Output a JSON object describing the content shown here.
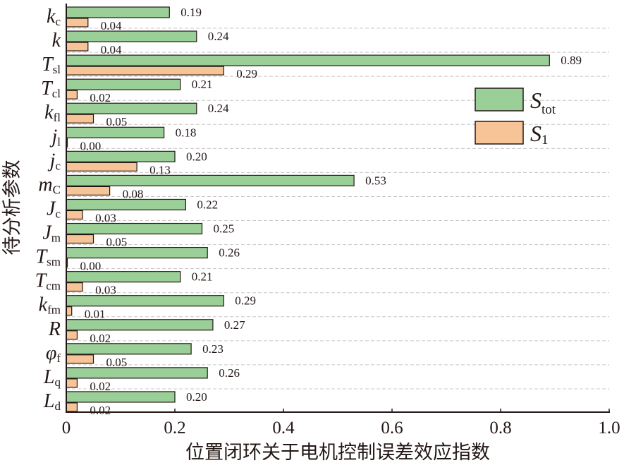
{
  "chart_data": {
    "type": "bar",
    "orientation": "horizontal",
    "title": "",
    "xlabel": "位置闭环关于电机控制误差效应指数",
    "ylabel": "待分析参数",
    "xlim": [
      0,
      1.0
    ],
    "xticks": [
      "0",
      "0.2",
      "0.4",
      "0.6",
      "0.8",
      "1.0"
    ],
    "xtick_values": [
      0,
      0.2,
      0.4,
      0.6,
      0.8,
      1.0
    ],
    "grid": "horizontal dashed separators",
    "legend_position": "right",
    "categories": [
      {
        "main": "k",
        "sub": "c"
      },
      {
        "main": "k",
        "sub": ""
      },
      {
        "main": "T",
        "sub": "sl"
      },
      {
        "main": "T",
        "sub": "cl"
      },
      {
        "main": "k",
        "sub": "fl"
      },
      {
        "main": "j",
        "sub": "l"
      },
      {
        "main": "j",
        "sub": "c"
      },
      {
        "main": "m",
        "sub": "C"
      },
      {
        "main": "J",
        "sub": "c"
      },
      {
        "main": "J",
        "sub": "m"
      },
      {
        "main": "T",
        "sub": "sm"
      },
      {
        "main": "T",
        "sub": "cm"
      },
      {
        "main": "k",
        "sub": "fm"
      },
      {
        "main": "R",
        "sub": ""
      },
      {
        "main": "φ",
        "sub": "f"
      },
      {
        "main": "L",
        "sub": "q"
      },
      {
        "main": "L",
        "sub": "d"
      }
    ],
    "series": [
      {
        "name": "S",
        "name_sub": "tot",
        "color": "#9bcf98",
        "values": [
          0.19,
          0.24,
          0.89,
          0.21,
          0.24,
          0.18,
          0.2,
          0.53,
          0.22,
          0.25,
          0.26,
          0.21,
          0.29,
          0.27,
          0.23,
          0.26,
          0.2
        ],
        "labels": [
          "0.19",
          "0.24",
          "0.89",
          "0.21",
          "0.24",
          "0.18",
          "0.20",
          "0.53",
          "0.22",
          "0.25",
          "0.26",
          "0.21",
          "0.29",
          "0.27",
          "0.23",
          "0.26",
          "0.20"
        ]
      },
      {
        "name": "S",
        "name_sub": "1",
        "color": "#f7c498",
        "values": [
          0.04,
          0.04,
          0.29,
          0.02,
          0.05,
          0.0,
          0.13,
          0.08,
          0.03,
          0.05,
          0.0,
          0.03,
          0.01,
          0.02,
          0.05,
          0.02,
          0.02
        ],
        "labels": [
          "0.04",
          "0.04",
          "0.29",
          "0.02",
          "0.05",
          "0.00",
          "0.13",
          "0.08",
          "0.03",
          "0.05",
          "0.00",
          "0.03",
          "0.01",
          "0.02",
          "0.05",
          "0.02",
          "0.02"
        ]
      }
    ]
  }
}
